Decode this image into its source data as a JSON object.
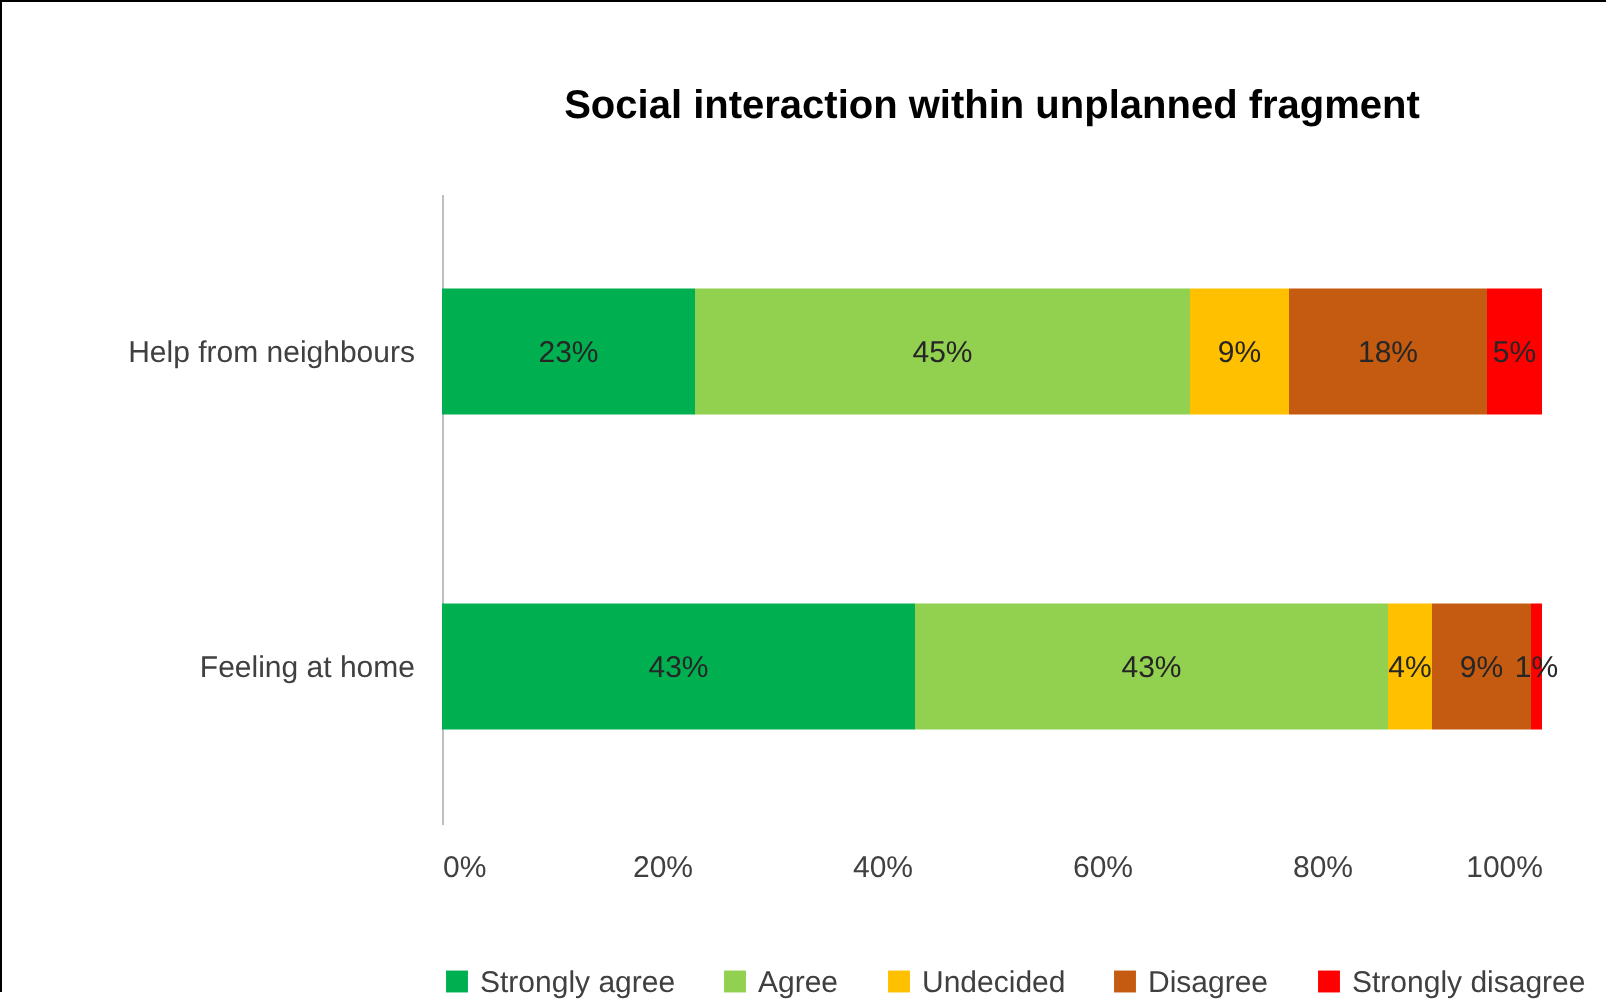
{
  "chart_data": {
    "type": "bar",
    "orientation": "horizontal",
    "stacked": true,
    "title": "Social interaction within unplanned fragment",
    "categories": [
      "Help from neighbours",
      "Feeling at home"
    ],
    "series": [
      {
        "name": "Strongly agree",
        "color": "#00b050",
        "values": [
          23,
          43
        ],
        "value_labels": [
          "23%",
          "43%"
        ]
      },
      {
        "name": "Agree",
        "color": "#92d050",
        "values": [
          45,
          43
        ],
        "value_labels": [
          "45%",
          "43%"
        ]
      },
      {
        "name": "Undecided",
        "color": "#ffc000",
        "values": [
          9,
          4
        ],
        "value_labels": [
          "9%",
          "4%"
        ]
      },
      {
        "name": "Disagree",
        "color": "#c55a11",
        "values": [
          18,
          9
        ],
        "value_labels": [
          "18%",
          "9%"
        ]
      },
      {
        "name": "Strongly disagree",
        "color": "#ff0000",
        "values": [
          5,
          1
        ],
        "value_labels": [
          "5%",
          "1%"
        ]
      }
    ],
    "xlim": [
      0,
      100
    ],
    "xticks": [
      {
        "value": 0,
        "label": "0%"
      },
      {
        "value": 20,
        "label": "20%"
      },
      {
        "value": 40,
        "label": "40%"
      },
      {
        "value": 60,
        "label": "60%"
      },
      {
        "value": 80,
        "label": "80%"
      },
      {
        "value": 100,
        "label": "100%"
      }
    ],
    "grid": false,
    "legend": "bottom"
  }
}
